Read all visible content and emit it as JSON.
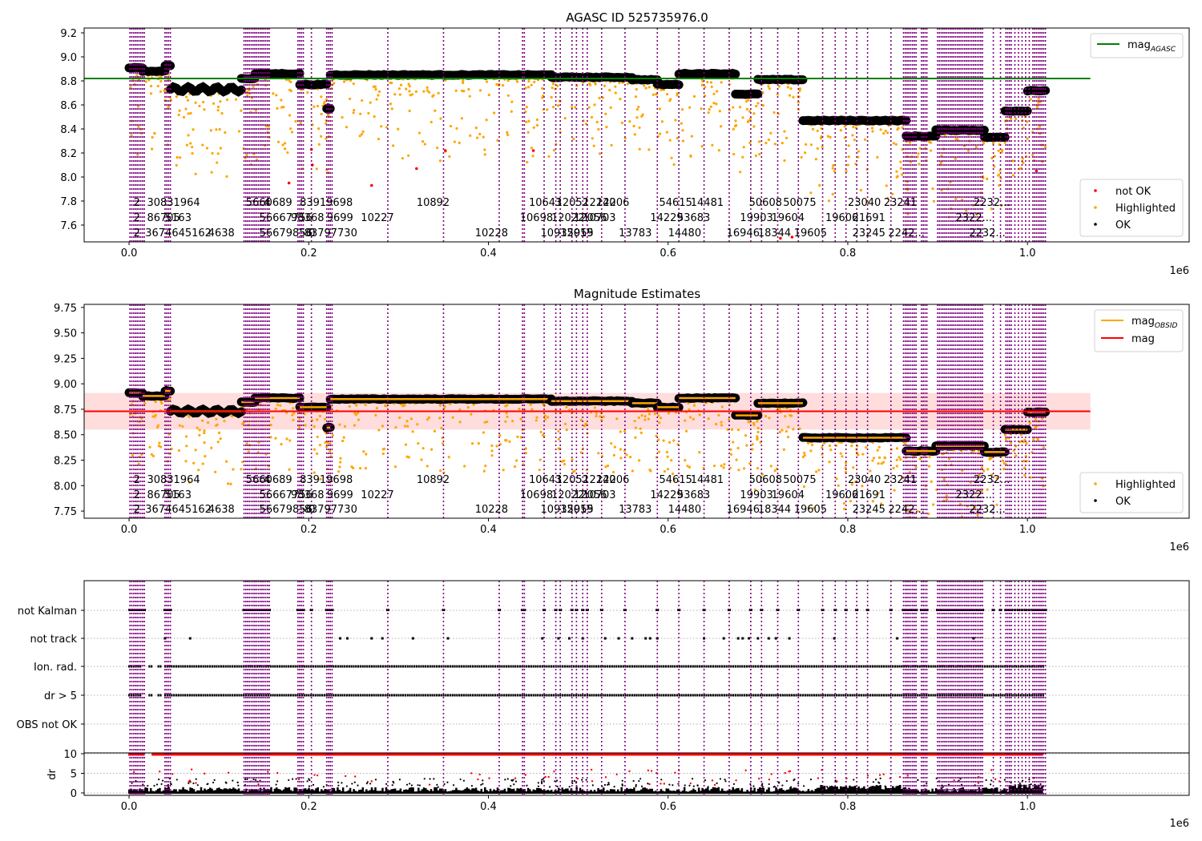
{
  "colors": {
    "obs_line": "#800080",
    "ok": "#000000",
    "highlighted": "#ffa500",
    "not_ok": "#ff0000",
    "agasc_line": "#008000",
    "obsid_line": "#ffa500",
    "mag_line": "#ff0000",
    "mag_band": "#ffdddd"
  },
  "chart_data": [
    {
      "type": "scatter",
      "title": "AGASC ID 525735976.0",
      "xlabel": "",
      "ylabel": "",
      "x_offset_label": "1e6",
      "xlim": [
        -0.05,
        1.18
      ],
      "ylim": [
        7.46,
        9.24
      ],
      "xticks": [
        "0.0",
        "0.2",
        "0.4",
        "0.6",
        "0.8",
        "1.0"
      ],
      "yticks": [
        "7.6",
        "7.8",
        "8.0",
        "8.2",
        "8.4",
        "8.6",
        "8.8",
        "9.0",
        "9.2"
      ],
      "mag_agasc": 8.82,
      "legend_upper": [
        {
          "label": "mag",
          "sub": "AGASC",
          "kind": "line",
          "color": "#008000"
        }
      ],
      "legend_lower": [
        {
          "label": "not OK",
          "kind": "dot",
          "color": "#ff0000"
        },
        {
          "label": "Highlighted",
          "kind": "dot",
          "color": "#ffa500"
        },
        {
          "label": "OK",
          "kind": "dot",
          "color": "#000000"
        }
      ],
      "segments": [
        {
          "x0": 0.0,
          "x1": 0.015,
          "mag": 8.91
        },
        {
          "x0": 0.015,
          "x1": 0.04,
          "mag": 8.88
        },
        {
          "x0": 0.04,
          "x1": 0.046,
          "mag": 8.93
        },
        {
          "x0": 0.046,
          "x1": 0.125,
          "mag": 8.73
        },
        {
          "x0": 0.125,
          "x1": 0.14,
          "mag": 8.82
        },
        {
          "x0": 0.14,
          "x1": 0.19,
          "mag": 8.86
        },
        {
          "x0": 0.19,
          "x1": 0.22,
          "mag": 8.77
        },
        {
          "x0": 0.22,
          "x1": 0.224,
          "mag": 8.57
        },
        {
          "x0": 0.224,
          "x1": 0.47,
          "mag": 8.85
        },
        {
          "x0": 0.47,
          "x1": 0.56,
          "mag": 8.83
        },
        {
          "x0": 0.56,
          "x1": 0.588,
          "mag": 8.81
        },
        {
          "x0": 0.588,
          "x1": 0.612,
          "mag": 8.77
        },
        {
          "x0": 0.612,
          "x1": 0.675,
          "mag": 8.86
        },
        {
          "x0": 0.675,
          "x1": 0.7,
          "mag": 8.69
        },
        {
          "x0": 0.7,
          "x1": 0.75,
          "mag": 8.81
        },
        {
          "x0": 0.75,
          "x1": 0.865,
          "mag": 8.47
        },
        {
          "x0": 0.865,
          "x1": 0.898,
          "mag": 8.34
        },
        {
          "x0": 0.898,
          "x1": 0.952,
          "mag": 8.39
        },
        {
          "x0": 0.952,
          "x1": 0.975,
          "mag": 8.33
        },
        {
          "x0": 0.975,
          "x1": 1.0,
          "mag": 8.55
        },
        {
          "x0": 1.0,
          "x1": 1.02,
          "mag": 8.72
        }
      ],
      "not_ok_points": [
        [
          0.178,
          7.95
        ],
        [
          0.203,
          8.23
        ],
        [
          0.204,
          8.1
        ],
        [
          0.32,
          8.07
        ],
        [
          0.352,
          8.22
        ],
        [
          0.45,
          8.22
        ],
        [
          0.27,
          7.93
        ],
        [
          0.725,
          7.49
        ],
        [
          0.738,
          7.5
        ],
        [
          1.01,
          8.05
        ]
      ],
      "obsid_labels": {
        "row_top": [
          {
            "x": 0.005,
            "text": "2"
          },
          {
            "x": 0.02,
            "text": "30831964"
          },
          {
            "x": 0.13,
            "text": "5660689"
          },
          {
            "x": 0.15,
            "text": "4"
          },
          {
            "x": 0.19,
            "text": "83919698"
          },
          {
            "x": 0.32,
            "text": "10892"
          },
          {
            "x": 0.445,
            "text": "10643"
          },
          {
            "x": 0.475,
            "text": "12052"
          },
          {
            "x": 0.505,
            "text": "12240"
          },
          {
            "x": 0.52,
            "text": "12206"
          },
          {
            "x": 0.59,
            "text": "54615"
          },
          {
            "x": 0.625,
            "text": "14481"
          },
          {
            "x": 0.69,
            "text": "50608"
          },
          {
            "x": 0.728,
            "text": "50075"
          },
          {
            "x": 0.8,
            "text": "23040"
          },
          {
            "x": 0.84,
            "text": "23241"
          },
          {
            "x": 0.94,
            "text": "2232..."
          }
        ],
        "row_mid": [
          {
            "x": 0.005,
            "text": "2"
          },
          {
            "x": 0.02,
            "text": "86705"
          },
          {
            "x": 0.04,
            "text": "5163"
          },
          {
            "x": 0.145,
            "text": "56667756"
          },
          {
            "x": 0.18,
            "text": "98"
          },
          {
            "x": 0.195,
            "text": "368"
          },
          {
            "x": 0.22,
            "text": "9699"
          },
          {
            "x": 0.258,
            "text": "10227"
          },
          {
            "x": 0.435,
            "text": "10698"
          },
          {
            "x": 0.47,
            "text": "12022"
          },
          {
            "x": 0.495,
            "text": "12056"
          },
          {
            "x": 0.505,
            "text": "10703"
          },
          {
            "x": 0.58,
            "text": "14229"
          },
          {
            "x": 0.61,
            "text": "53683"
          },
          {
            "x": 0.68,
            "text": "19903"
          },
          {
            "x": 0.715,
            "text": "19604"
          },
          {
            "x": 0.775,
            "text": "19606"
          },
          {
            "x": 0.805,
            "text": "21691"
          },
          {
            "x": 0.92,
            "text": "2322..."
          }
        ],
        "row_bot": [
          {
            "x": 0.005,
            "text": "2"
          },
          {
            "x": 0.018,
            "text": "3674645162"
          },
          {
            "x": 0.088,
            "text": "4638"
          },
          {
            "x": 0.145,
            "text": "56679856"
          },
          {
            "x": 0.195,
            "text": "83797730"
          },
          {
            "x": 0.2,
            "text": "0"
          },
          {
            "x": 0.385,
            "text": "10228"
          },
          {
            "x": 0.458,
            "text": "10935"
          },
          {
            "x": 0.48,
            "text": "12019"
          },
          {
            "x": 0.495,
            "text": "955"
          },
          {
            "x": 0.545,
            "text": "13783"
          },
          {
            "x": 0.6,
            "text": "14480"
          },
          {
            "x": 0.665,
            "text": "16946"
          },
          {
            "x": 0.7,
            "text": "18344"
          },
          {
            "x": 0.74,
            "text": "19605"
          },
          {
            "x": 0.805,
            "text": "23245"
          },
          {
            "x": 0.845,
            "text": "2242..."
          },
          {
            "x": 0.935,
            "text": "2232..."
          }
        ]
      }
    },
    {
      "type": "scatter",
      "title": "Magnitude Estimates",
      "xlabel": "",
      "ylabel": "",
      "x_offset_label": "1e6",
      "xlim": [
        -0.05,
        1.18
      ],
      "ylim": [
        7.68,
        9.78
      ],
      "xticks": [
        "0.0",
        "0.2",
        "0.4",
        "0.6",
        "0.8",
        "1.0"
      ],
      "yticks": [
        "7.75",
        "8.00",
        "8.25",
        "8.50",
        "8.75",
        "9.00",
        "9.25",
        "9.50",
        "9.75"
      ],
      "mag": 8.73,
      "mag_band": [
        8.55,
        8.91
      ],
      "legend_upper": [
        {
          "label": "mag",
          "sub": "OBSID",
          "kind": "line",
          "color": "#ffa500"
        },
        {
          "label": "mag",
          "sub": "",
          "kind": "line",
          "color": "#ff0000"
        }
      ],
      "legend_lower": [
        {
          "label": "Highlighted",
          "kind": "dot",
          "color": "#ffa500"
        },
        {
          "label": "OK",
          "kind": "dot",
          "color": "#000000"
        }
      ]
    },
    {
      "type": "scatter",
      "title": "",
      "xlabel": "",
      "ylabel": "dr",
      "x_offset_label": "1e6",
      "xlim": [
        -0.05,
        1.18
      ],
      "xticks": [
        "0.0",
        "0.2",
        "0.4",
        "0.6",
        "0.8",
        "1.0"
      ],
      "flag_rows": [
        "not Kalman",
        "not track",
        "Ion. rad.",
        "dr > 5",
        "OBS not OK"
      ],
      "dr_ticks": [
        "0",
        "5",
        "10"
      ],
      "dr_ylim": [
        0,
        10
      ],
      "dr_clip": 10
    }
  ],
  "obs_lines": [
    0.001,
    0.003,
    0.005,
    0.007,
    0.009,
    0.011,
    0.013,
    0.015,
    0.017,
    0.04,
    0.042,
    0.044,
    0.046,
    0.128,
    0.13,
    0.132,
    0.134,
    0.136,
    0.138,
    0.14,
    0.142,
    0.144,
    0.146,
    0.148,
    0.15,
    0.152,
    0.154,
    0.156,
    0.188,
    0.19,
    0.192,
    0.194,
    0.203,
    0.22,
    0.222,
    0.224,
    0.226,
    0.288,
    0.35,
    0.412,
    0.438,
    0.44,
    0.462,
    0.475,
    0.48,
    0.493,
    0.498,
    0.505,
    0.51,
    0.526,
    0.552,
    0.588,
    0.612,
    0.64,
    0.668,
    0.692,
    0.704,
    0.722,
    0.745,
    0.772,
    0.786,
    0.798,
    0.81,
    0.822,
    0.848,
    0.862,
    0.864,
    0.866,
    0.868,
    0.87,
    0.872,
    0.874,
    0.876,
    0.882,
    0.884,
    0.886,
    0.888,
    0.9,
    0.902,
    0.904,
    0.906,
    0.908,
    0.91,
    0.912,
    0.914,
    0.916,
    0.918,
    0.92,
    0.922,
    0.924,
    0.926,
    0.928,
    0.93,
    0.932,
    0.934,
    0.936,
    0.938,
    0.94,
    0.942,
    0.944,
    0.946,
    0.948,
    0.95,
    0.962,
    0.97,
    0.976,
    0.978,
    0.98,
    0.982,
    0.986,
    0.99,
    0.994,
    0.998,
    1.002,
    1.006,
    1.008,
    1.01,
    1.012,
    1.014,
    1.016,
    1.018,
    1.02
  ]
}
